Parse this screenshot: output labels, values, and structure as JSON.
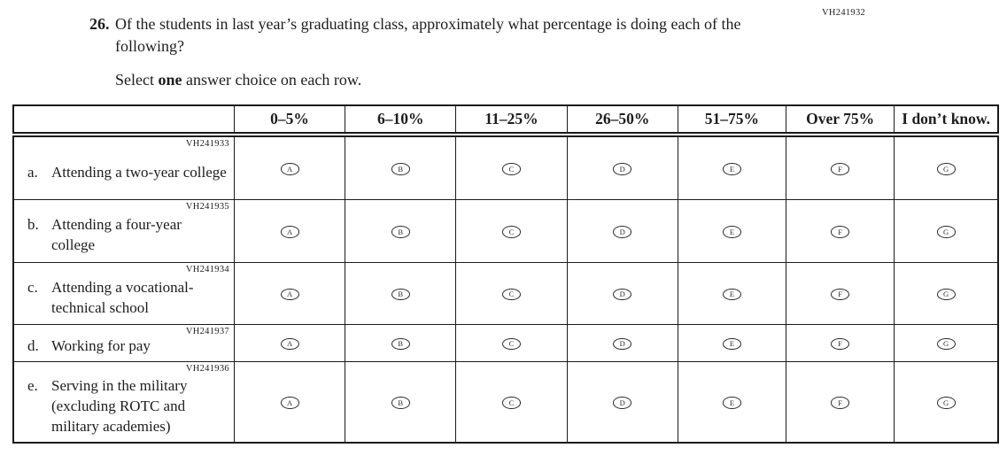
{
  "page": {
    "code": "VH241932"
  },
  "question": {
    "number": "26.",
    "text": "Of the students in last year’s graduating class, approximately what percentage is doing each of the following?",
    "instruction_prefix": "Select ",
    "instruction_bold": "one",
    "instruction_suffix": " answer choice on each row."
  },
  "table": {
    "columns": [
      "0–5%",
      "6–10%",
      "11–25%",
      "26–50%",
      "51–75%",
      "Over 75%",
      "I don’t know."
    ],
    "choices": [
      "A",
      "B",
      "C",
      "D",
      "E",
      "F",
      "G"
    ],
    "rows": [
      {
        "code": "VH241933",
        "letter": "a.",
        "label": "Attending a two-year college"
      },
      {
        "code": "VH241935",
        "letter": "b.",
        "label": "Attending a four-year college"
      },
      {
        "code": "VH241934",
        "letter": "c.",
        "label": "Attending a vocational-technical school"
      },
      {
        "code": "VH241937",
        "letter": "d.",
        "label": "Working for pay"
      },
      {
        "code": "VH241936",
        "letter": "e.",
        "label": "Serving in the military (excluding ROTC and military academies)"
      }
    ]
  }
}
